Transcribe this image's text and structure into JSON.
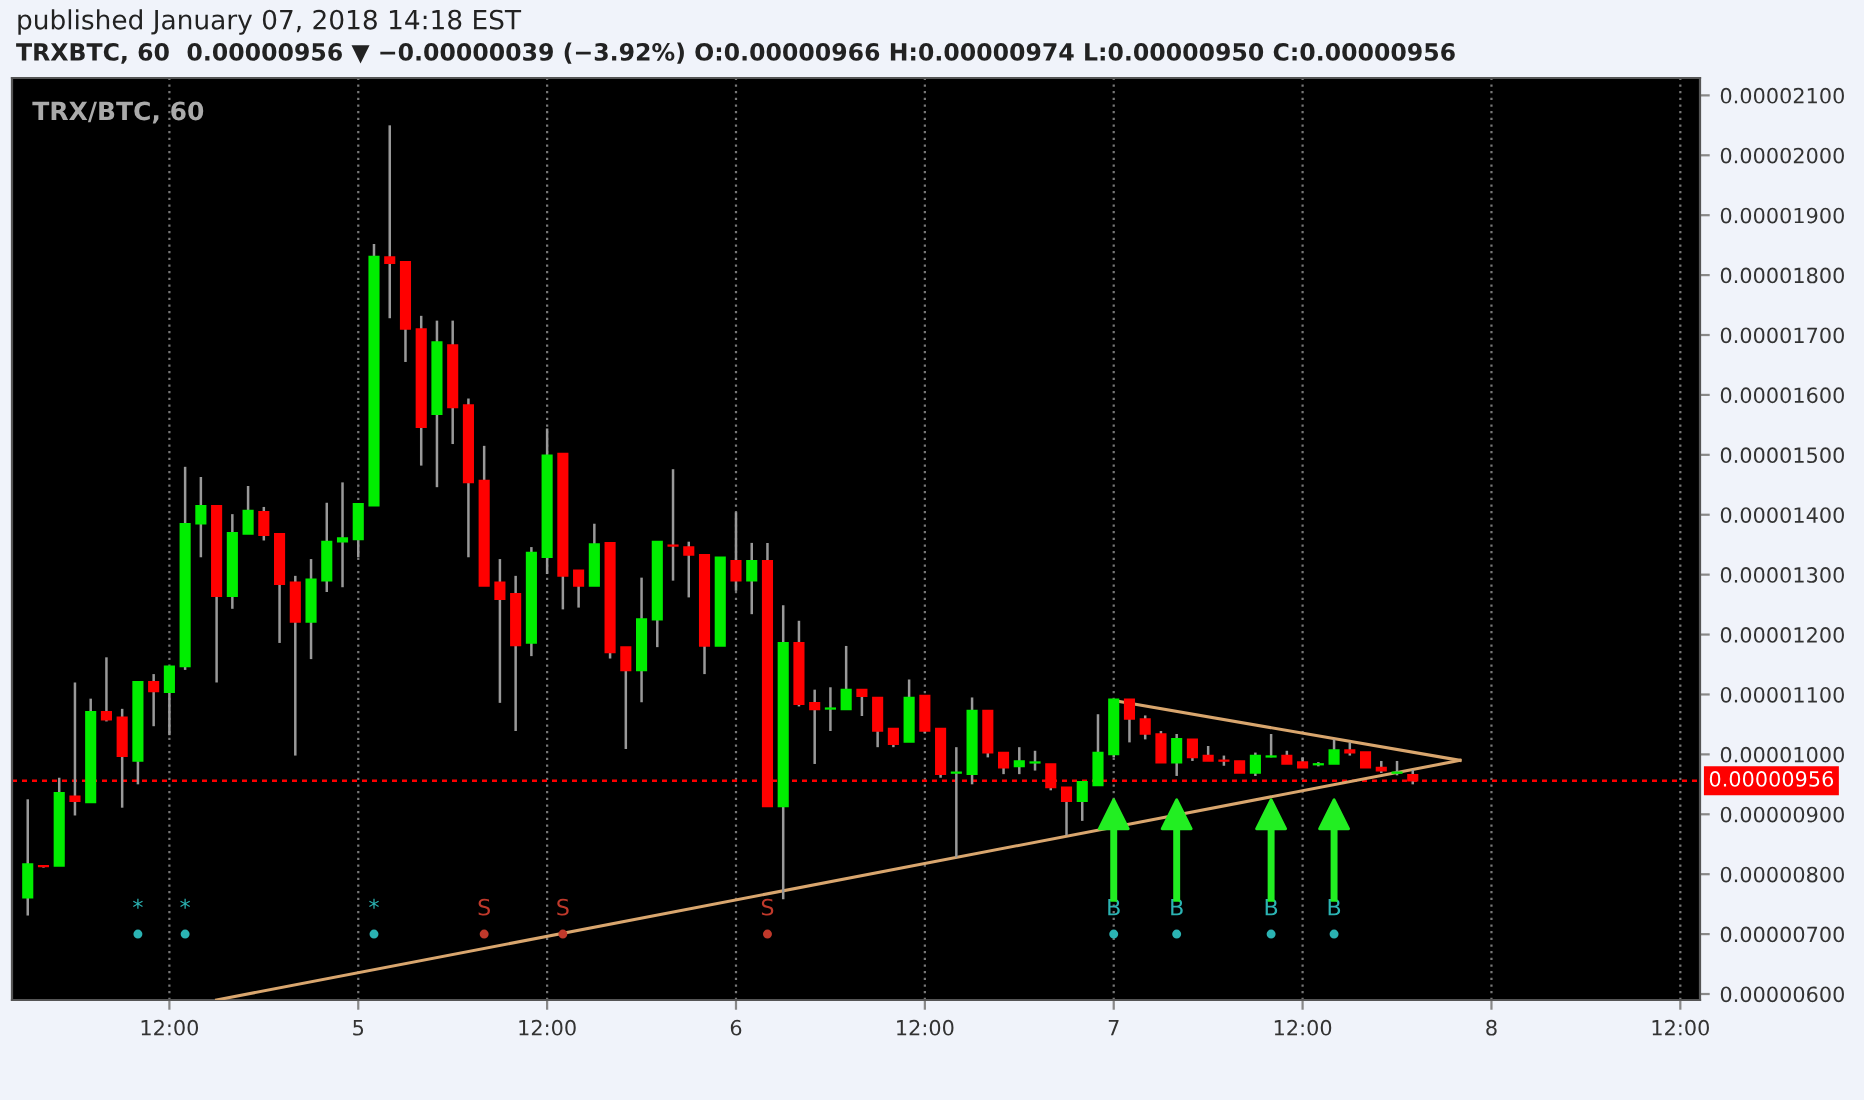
{
  "chart_data": {
    "type": "candlestick",
    "title": "published January 07, 2018 14:18 EST",
    "subtitle": "TRXBTC, 60  0.00000956 ▼ −0.00000039 (−3.92%) O:0.00000966 H:0.00000974 L:0.00000950 C:0.00000956",
    "x": [
      "2018-01-04T03:00",
      "2018-01-04T04:00",
      "2018-01-04T05:00",
      "2018-01-04T06:00",
      "2018-01-04T07:00",
      "2018-01-04T08:00",
      "2018-01-04T09:00",
      "2018-01-04T10:00",
      "2018-01-04T11:00",
      "2018-01-04T12:00",
      "2018-01-04T13:00",
      "2018-01-04T14:00",
      "2018-01-04T15:00",
      "2018-01-04T16:00",
      "2018-01-04T17:00",
      "2018-01-04T18:00",
      "2018-01-04T19:00",
      "2018-01-04T20:00",
      "2018-01-04T21:00",
      "2018-01-04T22:00",
      "2018-01-04T23:00",
      "2018-01-05T00:00",
      "2018-01-05T01:00",
      "2018-01-05T02:00",
      "2018-01-05T03:00",
      "2018-01-05T04:00",
      "2018-01-05T05:00",
      "2018-01-05T06:00",
      "2018-01-05T07:00",
      "2018-01-05T08:00",
      "2018-01-05T09:00",
      "2018-01-05T10:00",
      "2018-01-05T11:00",
      "2018-01-05T12:00",
      "2018-01-05T13:00",
      "2018-01-05T14:00",
      "2018-01-05T15:00",
      "2018-01-05T16:00",
      "2018-01-05T17:00",
      "2018-01-05T18:00",
      "2018-01-05T19:00",
      "2018-01-05T20:00",
      "2018-01-05T21:00",
      "2018-01-05T22:00",
      "2018-01-05T23:00",
      "2018-01-06T00:00",
      "2018-01-06T01:00",
      "2018-01-06T02:00",
      "2018-01-06T03:00",
      "2018-01-06T04:00",
      "2018-01-06T05:00",
      "2018-01-06T06:00",
      "2018-01-06T07:00",
      "2018-01-06T08:00",
      "2018-01-06T09:00",
      "2018-01-06T10:00",
      "2018-01-06T11:00",
      "2018-01-06T12:00",
      "2018-01-06T13:00",
      "2018-01-06T14:00",
      "2018-01-06T15:00",
      "2018-01-06T16:00",
      "2018-01-06T17:00",
      "2018-01-06T18:00",
      "2018-01-06T19:00",
      "2018-01-06T20:00",
      "2018-01-06T21:00",
      "2018-01-06T22:00",
      "2018-01-06T23:00",
      "2018-01-07T00:00",
      "2018-01-07T01:00",
      "2018-01-07T02:00",
      "2018-01-07T03:00",
      "2018-01-07T04:00",
      "2018-01-07T05:00",
      "2018-01-07T06:00",
      "2018-01-07T07:00",
      "2018-01-07T08:00",
      "2018-01-07T09:00",
      "2018-01-07T10:00",
      "2018-01-07T11:00",
      "2018-01-07T12:00",
      "2018-01-07T13:00",
      "2018-01-07T14:00",
      "2018-01-07T15:00",
      "2018-01-07T16:00",
      "2018-01-07T17:00",
      "2018-01-07T18:00",
      "2018-01-07T19:00"
    ],
    "ohlc": [
      [
        7.61e-06,
        9.25e-06,
        7.31e-06,
        8.17e-06
      ],
      [
        8.14e-06,
        8.15e-06,
        8.11e-06,
        8.13e-06
      ],
      [
        8.14e-06,
        9.61e-06,
        8.14e-06,
        9.36e-06
      ],
      [
        9.3e-06,
        1.12e-05,
        8.98e-06,
        9.22e-06
      ],
      [
        9.2e-06,
        1.093e-05,
        9.2e-06,
        1.071e-05
      ],
      [
        1.071e-05,
        1.162e-05,
        1.055e-05,
        1.058e-05
      ],
      [
        1.062e-05,
        1.076e-05,
        9.11e-06,
        9.97e-06
      ],
      [
        9.89e-06,
        1.121e-05,
        9.5e-06,
        1.121e-05
      ],
      [
        1.121e-05,
        1.134e-05,
        1.047e-05,
        1.105e-05
      ],
      [
        1.104e-05,
        1.147e-05,
        1.032e-05,
        1.147e-05
      ],
      [
        1.147e-05,
        1.48e-05,
        1.141e-05,
        1.385e-05
      ],
      [
        1.385e-05,
        1.463e-05,
        1.329e-05,
        1.415e-05
      ],
      [
        1.415e-05,
        1.415e-05,
        1.12e-05,
        1.264e-05
      ],
      [
        1.264e-05,
        1.401e-05,
        1.243e-05,
        1.37e-05
      ],
      [
        1.368e-05,
        1.448e-05,
        1.368e-05,
        1.407e-05
      ],
      [
        1.405e-05,
        1.413e-05,
        1.357e-05,
        1.366e-05
      ],
      [
        1.368e-05,
        1.368e-05,
        1.186e-05,
        1.284e-05
      ],
      [
        1.287e-05,
        1.298e-05,
        9.98e-06,
        1.221e-05
      ],
      [
        1.221e-05,
        1.326e-05,
        1.159e-05,
        1.292e-05
      ],
      [
        1.29e-05,
        1.42e-05,
        1.271e-05,
        1.355e-05
      ],
      [
        1.355e-05,
        1.454e-05,
        1.279e-05,
        1.361e-05
      ],
      [
        1.359e-05,
        1.418e-05,
        1.329e-05,
        1.418e-05
      ],
      [
        1.415e-05,
        1.852e-05,
        1.415e-05,
        1.831e-05
      ],
      [
        1.83e-05,
        2.05e-05,
        1.728e-05,
        1.82e-05
      ],
      [
        1.822e-05,
        1.822e-05,
        1.655e-05,
        1.71e-05
      ],
      [
        1.71e-05,
        1.732e-05,
        1.482e-05,
        1.546e-05
      ],
      [
        1.568e-05,
        1.724e-05,
        1.446e-05,
        1.688e-05
      ],
      [
        1.683e-05,
        1.724e-05,
        1.518e-05,
        1.579e-05
      ],
      [
        1.583e-05,
        1.594e-05,
        1.329e-05,
        1.454e-05
      ],
      [
        1.457e-05,
        1.515e-05,
        1.281e-05,
        1.281e-05
      ],
      [
        1.287e-05,
        1.326e-05,
        1.086e-05,
        1.259e-05
      ],
      [
        1.268e-05,
        1.298e-05,
        1.039e-05,
        1.182e-05
      ],
      [
        1.186e-05,
        1.346e-05,
        1.164e-05,
        1.337e-05
      ],
      [
        1.329e-05,
        1.544e-05,
        1.301e-05,
        1.499e-05
      ],
      [
        1.502e-05,
        1.502e-05,
        1.242e-05,
        1.298e-05
      ],
      [
        1.307e-05,
        1.307e-05,
        1.245e-05,
        1.281e-05
      ],
      [
        1.281e-05,
        1.385e-05,
        1.281e-05,
        1.351e-05
      ],
      [
        1.353e-05,
        1.353e-05,
        1.16e-05,
        1.17e-05
      ],
      [
        1.179e-05,
        1.179e-05,
        1.009e-05,
        1.14e-05
      ],
      [
        1.14e-05,
        1.295e-05,
        1.087e-05,
        1.226e-05
      ],
      [
        1.225e-05,
        1.355e-05,
        1.179e-05,
        1.355e-05
      ],
      [
        1.349e-05,
        1.476e-05,
        1.29e-05,
        1.348e-05
      ],
      [
        1.346e-05,
        1.355e-05,
        1.262e-05,
        1.333e-05
      ],
      [
        1.333e-05,
        1.333e-05,
        1.134e-05,
        1.181e-05
      ],
      [
        1.181e-05,
        1.329e-05,
        1.181e-05,
        1.329e-05
      ],
      [
        1.323e-05,
        1.404e-05,
        1.273e-05,
        1.29e-05
      ],
      [
        1.29e-05,
        1.353e-05,
        1.234e-05,
        1.323e-05
      ],
      [
        1.323e-05,
        1.353e-05,
        9.13e-06,
        9.13e-06
      ],
      [
        9.13e-06,
        1.249e-05,
        7.58e-06,
        1.186e-05
      ],
      [
        1.186e-05,
        1.223e-05,
        1.08e-05,
        1.084e-05
      ],
      [
        1.086e-05,
        1.108e-05,
        9.84e-06,
        1.075e-05
      ],
      [
        1.076e-05,
        1.112e-05,
        1.039e-05,
        1.077e-05
      ],
      [
        1.075e-05,
        1.181e-05,
        1.075e-05,
        1.108e-05
      ],
      [
        1.108e-05,
        1.108e-05,
        1.064e-05,
        1.097e-05
      ],
      [
        1.095e-05,
        1.095e-05,
        1.012e-05,
        1.039e-05
      ],
      [
        1.043e-05,
        1.043e-05,
        1.012e-05,
        1.017e-05
      ],
      [
        1.021e-05,
        1.125e-05,
        1.021e-05,
        1.095e-05
      ],
      [
        1.098e-05,
        1.098e-05,
        1.035e-05,
        1.039e-05
      ],
      [
        1.043e-05,
        1.043e-05,
        9.61e-06,
        9.67e-06
      ],
      [
        9.69e-06,
        1.012e-05,
        8.28e-06,
        9.7e-06
      ],
      [
        9.67e-06,
        1.095e-05,
        9.5e-06,
        1.073e-05
      ],
      [
        1.073e-05,
        1.073e-05,
        9.95e-06,
        1.003e-05
      ],
      [
        1.003e-05,
        1.003e-05,
        9.67e-06,
        9.78e-06
      ],
      [
        9.8e-06,
        1.012e-05,
        9.67e-06,
        9.89e-06
      ],
      [
        9.86e-06,
        1.006e-05,
        9.73e-06,
        9.87e-06
      ],
      [
        9.84e-06,
        9.84e-06,
        9.4e-06,
        9.45e-06
      ],
      [
        9.45e-06,
        9.45e-06,
        8.65e-06,
        9.22e-06
      ],
      [
        9.22e-06,
        9.54e-06,
        8.89e-06,
        9.54e-06
      ],
      [
        9.48e-06,
        1.067e-05,
        9.48e-06,
        1.003e-05
      ],
      [
        1e-05,
        1.092e-05,
        9.95e-06,
        1.092e-05
      ],
      [
        1.092e-05,
        1.092e-05,
        1.02e-05,
        1.059e-05
      ],
      [
        1.059e-05,
        1.065e-05,
        1.025e-05,
        1.034e-05
      ],
      [
        1.034e-05,
        1.039e-05,
        9.86e-06,
        9.86e-06
      ],
      [
        9.86e-06,
        1.034e-05,
        9.64e-06,
        1.026e-05
      ],
      [
        1.025e-05,
        1.025e-05,
        9.89e-06,
        9.95e-06
      ],
      [
        9.98e-06,
        1.014e-05,
        9.89e-06,
        9.89e-06
      ],
      [
        9.9e-06,
        9.98e-06,
        9.81e-06,
        9.89e-06
      ],
      [
        9.89e-06,
        9.89e-06,
        9.69e-06,
        9.69e-06
      ],
      [
        9.69e-06,
        1.003e-05,
        9.64e-06,
        9.98e-06
      ],
      [
        9.96e-06,
        1.034e-05,
        9.95e-06,
        9.97e-06
      ],
      [
        9.98e-06,
        1.006e-05,
        9.84e-06,
        9.84e-06
      ],
      [
        9.87e-06,
        9.95e-06,
        9.78e-06,
        9.78e-06
      ],
      [
        9.83e-06,
        9.87e-06,
        9.8e-06,
        9.84e-06
      ],
      [
        9.84e-06,
        1.025e-05,
        9.84e-06,
        1.007e-05
      ],
      [
        1.007e-05,
        1.02e-05,
        9.98e-06,
        1.003e-05
      ],
      [
        1.004e-05,
        1.004e-05,
        9.78e-06,
        9.78e-06
      ],
      [
        9.78e-06,
        9.89e-06,
        9.69e-06,
        9.73e-06
      ],
      [
        9.69e-06,
        9.89e-06,
        9.65e-06,
        9.7e-06
      ],
      [
        9.66e-06,
        9.74e-06,
        9.5e-06,
        9.56e-06
      ]
    ],
    "series": [
      {
        "type": "line",
        "color": "#d9a66e",
        "x": [
          "2018-01-07T00:00",
          "2018-01-07T22:00"
        ],
        "values": [
          1.09e-05,
          9.9e-06
        ]
      },
      {
        "type": "line",
        "color": "#d9a66e",
        "x": [
          "2018-01-04T15:00",
          "2018-01-07T22:00"
        ],
        "values": [
          5.9e-06,
          9.9e-06
        ]
      },
      {
        "type": "scatter",
        "name": "*",
        "color": "#2bb3b3",
        "x": [
          "2018-01-04T10:00",
          "2018-01-04T13:00",
          "2018-01-05T01:00"
        ],
        "marker": "circle",
        "values": [
          7e-06,
          7e-06,
          7e-06
        ]
      },
      {
        "type": "scatter",
        "name": "S",
        "color": "#c0392b",
        "x": [
          "2018-01-05T08:00",
          "2018-01-05T13:00",
          "2018-01-06T02:00"
        ],
        "marker": "circle",
        "values": [
          7e-06,
          7e-06,
          7e-06
        ]
      },
      {
        "type": "scatter",
        "name": "B",
        "color": "#2bb3b3",
        "x": [
          "2018-01-07T00:00",
          "2018-01-07T04:00",
          "2018-01-07T10:00",
          "2018-01-07T14:00"
        ],
        "marker": "circle",
        "values": [
          7e-06,
          7e-06,
          7e-06,
          7e-06
        ]
      },
      {
        "type": "scatter",
        "marker": "triangle",
        "color": "#22ee22",
        "x": [
          "2018-01-07T00:00",
          "2018-01-07T04:00",
          "2018-01-07T10:00",
          "2018-01-07T14:00"
        ],
        "values": [
          9e-06,
          9e-06,
          9e-06,
          9e-06
        ]
      }
    ],
    "xlim": [
      "2018-01-04T02:00",
      "2018-01-08T13:15"
    ],
    "xticks": [
      {
        "value": "2018-01-04T12:00",
        "label": "12:00"
      },
      {
        "value": "2018-01-05T00:00",
        "label": "5"
      },
      {
        "value": "2018-01-05T12:00",
        "label": "12:00"
      },
      {
        "value": "2018-01-06T00:00",
        "label": "6"
      },
      {
        "value": "2018-01-06T12:00",
        "label": "12:00"
      },
      {
        "value": "2018-01-07T00:00",
        "label": "7"
      },
      {
        "value": "2018-01-07T12:00",
        "label": "12:00"
      },
      {
        "value": "2018-01-08T00:00",
        "label": "8"
      },
      {
        "value": "2018-01-08T12:00",
        "label": "12:00"
      }
    ],
    "ylim": [
      5.9e-06,
      2.129e-05
    ],
    "yticks": [
      {
        "value": 6e-06,
        "label": "0.00000600"
      },
      {
        "value": 7e-06,
        "label": "0.00000700"
      },
      {
        "value": 8e-06,
        "label": "0.00000800"
      },
      {
        "value": 9e-06,
        "label": "0.00000900"
      },
      {
        "value": 1e-05,
        "label": "0.00001000"
      },
      {
        "value": 1.1e-05,
        "label": "0.00001100"
      },
      {
        "value": 1.2e-05,
        "label": "0.00001200"
      },
      {
        "value": 1.3e-05,
        "label": "0.00001300"
      },
      {
        "value": 1.4e-05,
        "label": "0.00001400"
      },
      {
        "value": 1.5e-05,
        "label": "0.00001500"
      },
      {
        "value": 1.6e-05,
        "label": "0.00001600"
      },
      {
        "value": 1.7e-05,
        "label": "0.00001700"
      },
      {
        "value": 1.8e-05,
        "label": "0.00001800"
      },
      {
        "value": 1.9e-05,
        "label": "0.00001900"
      },
      {
        "value": 2e-05,
        "label": "0.00002000"
      },
      {
        "value": 2.1e-05,
        "label": "0.00002100"
      }
    ],
    "ref_lines": [
      {
        "axis": "y",
        "value": 9.56e-06,
        "label": "0.00000956",
        "color": "#ff0000",
        "line_style": "dotted"
      }
    ],
    "grid": "x",
    "annotations": [
      "TRX/BTC, 60"
    ]
  }
}
